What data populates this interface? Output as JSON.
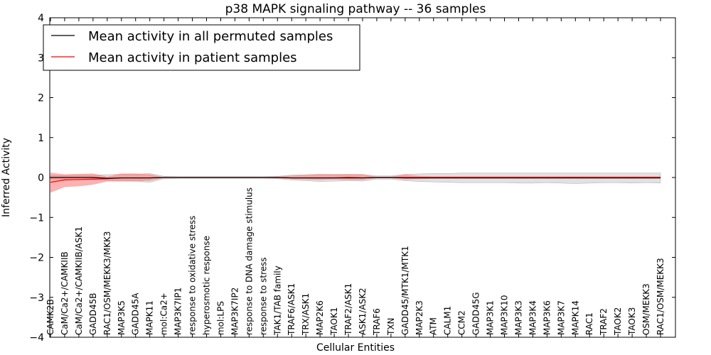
{
  "chart_data": {
    "type": "line",
    "title": "p38 MAPK signaling pathway -- 36 samples",
    "xlabel": "Cellular Entities",
    "ylabel": "Inferred Activity",
    "ylim": [
      -4,
      4
    ],
    "yticks": [
      4,
      3,
      2,
      1,
      0,
      -1,
      -2,
      -3,
      -4
    ],
    "ytick_labels": [
      "4",
      "3",
      "2",
      "1",
      "0",
      "−1",
      "−2",
      "−3",
      "−4"
    ],
    "legend_position": "top-left",
    "categories": [
      "CAMK2B",
      "CaM/Ca2+/CAMKIIB",
      "CaM/Ca2+/CAMKIIB/ASK1",
      "GADD45B",
      "RAC1/OSM/MEKK3/MKK3",
      "MAP3K5",
      "GADD45A",
      "MAPK11",
      "mol:Ca2+",
      "MAP3K7IP1",
      "response to oxidative stress",
      "hyperosmotic response",
      "mol:LPS",
      "MAP3K7IP2",
      "response to DNA damage stimulus",
      "response to stress",
      "TAK1/TAB family",
      "TRAF6/ASK1",
      "TRX/ASK1",
      "MAP2K6",
      "TAOK1",
      "TRAF2/ASK1",
      "ASK1/ASK2",
      "TRAF6",
      "TXN",
      "GADD45/MTK1/MTK1",
      "MAP2K3",
      "ATM",
      "CALM1",
      "CCM2",
      "GADD45G",
      "MAP3K1",
      "MAP3K10",
      "MAP3K3",
      "MAP3K4",
      "MAP3K6",
      "MAP3K7",
      "MAPK14",
      "RAC1",
      "TRAF2",
      "TAOK2",
      "TAOK3",
      "OSM/MEKK3",
      "RAC1/OSM/MEKK3"
    ],
    "series": [
      {
        "name": "Mean activity in all permuted samples",
        "color": "#000000",
        "band_color": "#c8c8c8",
        "values": [
          0.0,
          0.0,
          0.0,
          0.0,
          -0.02,
          -0.01,
          -0.01,
          -0.01,
          0.0,
          0.0,
          0.0,
          0.0,
          0.0,
          0.0,
          0.0,
          0.0,
          0.0,
          -0.01,
          -0.01,
          -0.01,
          -0.01,
          -0.01,
          -0.01,
          0.0,
          0.0,
          -0.01,
          -0.01,
          -0.01,
          -0.01,
          -0.01,
          -0.01,
          -0.01,
          -0.01,
          -0.01,
          -0.01,
          -0.01,
          -0.01,
          -0.01,
          -0.01,
          -0.01,
          -0.01,
          -0.01,
          -0.01,
          -0.01
        ],
        "lower": [
          -0.05,
          -0.05,
          -0.06,
          -0.06,
          -0.07,
          -0.08,
          -0.09,
          -0.12,
          -0.03,
          -0.02,
          -0.02,
          -0.02,
          -0.02,
          -0.02,
          -0.02,
          -0.02,
          -0.03,
          -0.06,
          -0.08,
          -0.1,
          -0.09,
          -0.08,
          -0.09,
          -0.04,
          -0.04,
          -0.08,
          -0.1,
          -0.11,
          -0.12,
          -0.13,
          -0.13,
          -0.13,
          -0.13,
          -0.14,
          -0.14,
          -0.13,
          -0.14,
          -0.15,
          -0.14,
          -0.13,
          -0.13,
          -0.14,
          -0.13,
          -0.14
        ],
        "upper": [
          0.05,
          0.05,
          0.06,
          0.06,
          0.07,
          0.08,
          0.08,
          0.1,
          0.03,
          0.02,
          0.02,
          0.02,
          0.02,
          0.02,
          0.02,
          0.02,
          0.03,
          0.06,
          0.07,
          0.08,
          0.08,
          0.08,
          0.08,
          0.04,
          0.04,
          0.08,
          0.09,
          0.1,
          0.1,
          0.11,
          0.11,
          0.11,
          0.11,
          0.11,
          0.11,
          0.11,
          0.11,
          0.11,
          0.11,
          0.11,
          0.11,
          0.11,
          0.11,
          0.11
        ]
      },
      {
        "name": "Mean activity in patient samples",
        "color": "#ff0000",
        "band_color": "#ff7070",
        "values": [
          -0.12,
          -0.06,
          -0.05,
          -0.04,
          -0.03,
          -0.01,
          -0.01,
          -0.01,
          0.0,
          0.0,
          0.0,
          0.0,
          0.0,
          0.0,
          0.0,
          0.0,
          0.0,
          -0.01,
          -0.01,
          -0.01,
          -0.01,
          0.0,
          -0.01,
          0.0,
          0.0,
          0.0,
          0.0,
          0.0,
          0.0,
          0.0,
          0.0,
          0.0,
          0.0,
          0.0,
          0.0,
          0.0,
          0.0,
          0.0,
          0.0,
          0.0,
          0.0,
          0.0,
          0.0,
          0.0
        ],
        "lower": [
          -0.38,
          -0.24,
          -0.22,
          -0.18,
          -0.1,
          -0.1,
          -0.1,
          -0.08,
          -0.01,
          -0.01,
          -0.01,
          -0.01,
          -0.01,
          -0.01,
          -0.01,
          -0.01,
          -0.02,
          -0.04,
          -0.05,
          -0.06,
          -0.05,
          -0.06,
          -0.06,
          -0.02,
          -0.02,
          -0.05,
          -0.04,
          -0.03,
          -0.03,
          -0.03,
          -0.03,
          -0.03,
          -0.03,
          -0.03,
          -0.03,
          -0.03,
          -0.03,
          -0.03,
          -0.03,
          -0.03,
          -0.03,
          -0.03,
          -0.03,
          -0.03
        ],
        "upper": [
          0.12,
          0.08,
          0.09,
          0.1,
          0.02,
          0.1,
          0.1,
          0.08,
          0.01,
          0.01,
          0.01,
          0.01,
          0.01,
          0.01,
          0.01,
          0.01,
          0.02,
          0.05,
          0.06,
          0.08,
          0.07,
          0.08,
          0.07,
          0.02,
          0.02,
          0.07,
          0.04,
          0.03,
          0.03,
          0.03,
          0.03,
          0.03,
          0.03,
          0.03,
          0.03,
          0.03,
          0.03,
          0.03,
          0.03,
          0.03,
          0.03,
          0.03,
          0.03,
          0.03
        ]
      }
    ]
  }
}
